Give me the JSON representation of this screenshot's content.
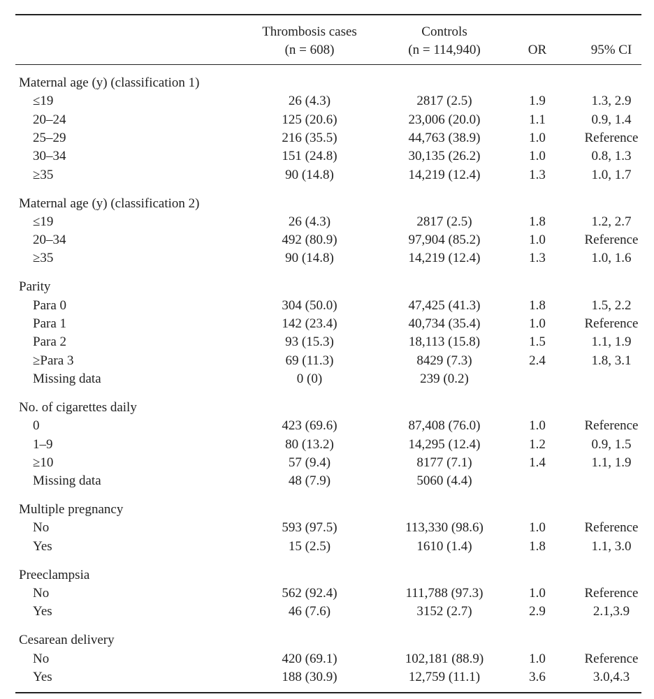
{
  "table": {
    "header": [
      {
        "line1": "Thrombosis cases",
        "line2": "(n = 608)"
      },
      {
        "line1": "Controls",
        "line2": "(n = 114,940)"
      },
      {
        "line1": "OR"
      },
      {
        "line1": "95% CI"
      }
    ],
    "sections": [
      {
        "title": "Maternal age (y) (classification 1)",
        "rows": [
          [
            "≤19",
            "26 (4.3)",
            "2817 (2.5)",
            "1.9",
            "1.3, 2.9"
          ],
          [
            "20–24",
            "125 (20.6)",
            "23,006 (20.0)",
            "1.1",
            "0.9, 1.4"
          ],
          [
            "25–29",
            "216 (35.5)",
            "44,763 (38.9)",
            "1.0",
            "Reference"
          ],
          [
            "30–34",
            "151 (24.8)",
            "30,135 (26.2)",
            "1.0",
            "0.8, 1.3"
          ],
          [
            "≥35",
            "90 (14.8)",
            "14,219 (12.4)",
            "1.3",
            "1.0, 1.7"
          ]
        ]
      },
      {
        "title": "Maternal age (y) (classification 2)",
        "rows": [
          [
            "≤19",
            "26 (4.3)",
            "2817 (2.5)",
            "1.8",
            "1.2, 2.7"
          ],
          [
            "20–34",
            "492 (80.9)",
            "97,904 (85.2)",
            "1.0",
            "Reference"
          ],
          [
            "≥35",
            "90 (14.8)",
            "14,219 (12.4)",
            "1.3",
            "1.0, 1.6"
          ]
        ]
      },
      {
        "title": "Parity",
        "rows": [
          [
            "Para 0",
            "304 (50.0)",
            "47,425 (41.3)",
            "1.8",
            "1.5, 2.2"
          ],
          [
            "Para 1",
            "142 (23.4)",
            "40,734 (35.4)",
            "1.0",
            "Reference"
          ],
          [
            "Para 2",
            "93 (15.3)",
            "18,113 (15.8)",
            "1.5",
            "1.1, 1.9"
          ],
          [
            "≥Para 3",
            "69 (11.3)",
            "8429 (7.3)",
            "2.4",
            "1.8, 3.1"
          ],
          [
            "Missing data",
            "0 (0)",
            "239 (0.2)"
          ]
        ]
      },
      {
        "title": "No. of cigarettes daily",
        "rows": [
          [
            "0",
            "423 (69.6)",
            "87,408 (76.0)",
            "1.0",
            "Reference"
          ],
          [
            "1–9",
            "80 (13.2)",
            "14,295 (12.4)",
            "1.2",
            "0.9, 1.5"
          ],
          [
            "≥10",
            "57 (9.4)",
            "8177 (7.1)",
            "1.4",
            "1.1, 1.9"
          ],
          [
            "Missing data",
            "48 (7.9)",
            "5060 (4.4)"
          ]
        ]
      },
      {
        "title": "Multiple pregnancy",
        "rows": [
          [
            "No",
            "593 (97.5)",
            "113,330 (98.6)",
            "1.0",
            "Reference"
          ],
          [
            "Yes",
            "15 (2.5)",
            "1610 (1.4)",
            "1.8",
            "1.1, 3.0"
          ]
        ]
      },
      {
        "title": "Preeclampsia",
        "rows": [
          [
            "No",
            "562 (92.4)",
            "111,788 (97.3)",
            "1.0",
            "Reference"
          ],
          [
            "Yes",
            "46 (7.6)",
            "3152 (2.7)",
            "2.9",
            "2.1,3.9"
          ]
        ]
      },
      {
        "title": "Cesarean delivery",
        "rows": [
          [
            "No",
            "420 (69.1)",
            "102,181 (88.9)",
            "1.0",
            "Reference"
          ],
          [
            "Yes",
            "188 (30.9)",
            "12,759 (11.1)",
            "3.6",
            "3.0,4.3"
          ]
        ]
      }
    ]
  }
}
